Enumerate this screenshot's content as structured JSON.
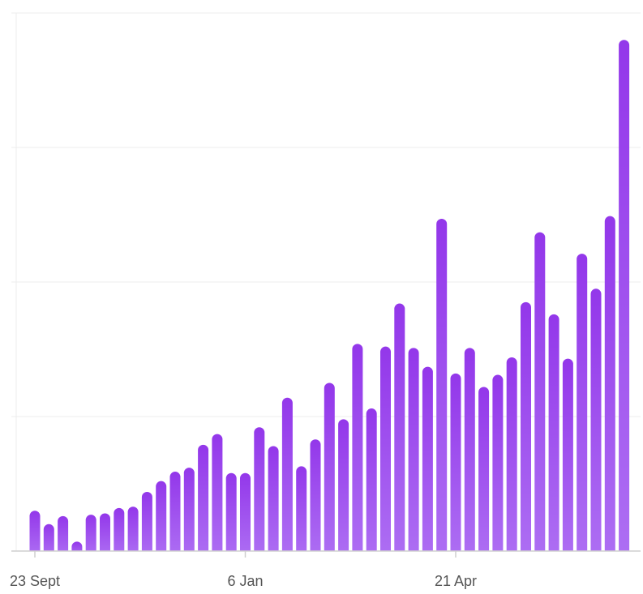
{
  "chart_data": {
    "type": "bar",
    "title": "",
    "xlabel": "",
    "ylabel": "",
    "ylim": [
      0,
      40
    ],
    "y_ticks": [
      0,
      10,
      20,
      30,
      40
    ],
    "y_tick_labels_visible": false,
    "grid": "horizontal",
    "legend": "none",
    "x_tick_labels": [
      {
        "label": "23 Sept",
        "index": 0
      },
      {
        "label": "6 Jan",
        "index": 15
      },
      {
        "label": "21 Apr",
        "index": 30
      }
    ],
    "values": [
      3,
      2,
      2.6,
      0.7,
      2.7,
      2.8,
      3.2,
      3.3,
      4.4,
      5.2,
      5.9,
      6.2,
      7.9,
      8.7,
      5.8,
      5.8,
      9.2,
      7.8,
      11.4,
      6.3,
      8.3,
      12.5,
      9.8,
      15.4,
      10.6,
      15.2,
      18.4,
      15.1,
      13.7,
      24.7,
      13.2,
      15.1,
      12.2,
      13.1,
      14.4,
      18.5,
      23.7,
      17.6,
      14.3,
      22.1,
      19.5,
      24.9,
      38.0
    ],
    "colors": {
      "bar_top": "#9337ea",
      "bar_bottom": "#ad6ef3",
      "grid": "#ececec",
      "axis": "#cfcfcf",
      "tick_text": "#555555"
    }
  }
}
